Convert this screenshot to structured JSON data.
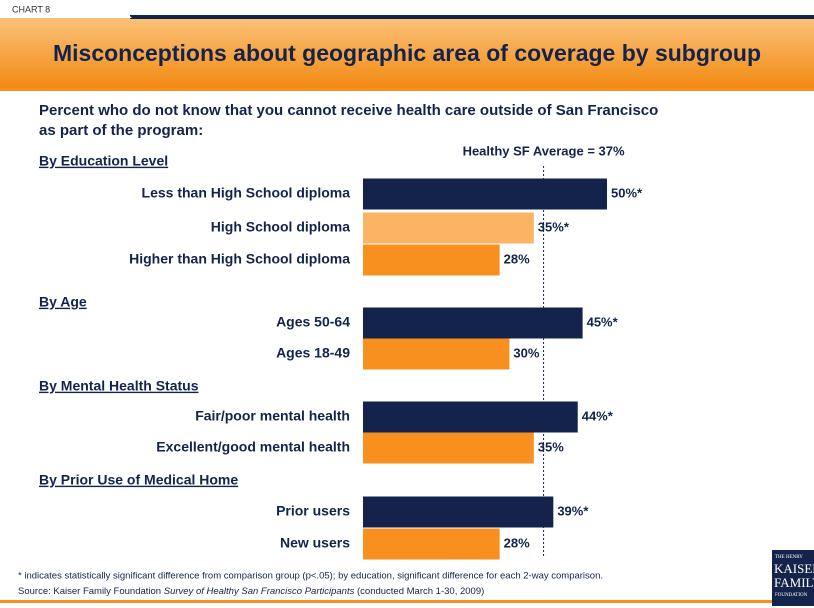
{
  "header": {
    "tag": "CHART 8",
    "title": "Misconceptions about geographic area of coverage by subgroup"
  },
  "chart_data": {
    "type": "bar",
    "subtitle": [
      "Percent who do not know that you cannot receive health care outside of San Francisco",
      "as part of the program:"
    ],
    "reference": {
      "value": 37,
      "label": "Healthy SF Average = 37%"
    },
    "groups": [
      {
        "name": "By Education Level",
        "categories": [
          "Less than High School diploma",
          "High School diploma",
          "Higher than High School diploma"
        ],
        "values": [
          50,
          35,
          28
        ],
        "value_labels": [
          "50%*",
          "35%*",
          "28%"
        ],
        "colors": [
          "#14234b",
          "#fbb463",
          "#f7901e"
        ]
      },
      {
        "name": "By Age",
        "categories": [
          "Ages 50-64",
          "Ages 18-49"
        ],
        "values": [
          45,
          30
        ],
        "value_labels": [
          "45%*",
          "30%"
        ],
        "colors": [
          "#14234b",
          "#f7901e"
        ]
      },
      {
        "name": "By Mental Health Status",
        "categories": [
          "Fair/poor mental health",
          "Excellent/good mental health"
        ],
        "values": [
          44,
          35
        ],
        "value_labels": [
          "44%*",
          "35%"
        ],
        "colors": [
          "#14234b",
          "#f7901e"
        ]
      },
      {
        "name": "By Prior Use of Medical Home",
        "categories": [
          "Prior users",
          "New users"
        ],
        "values": [
          39,
          28
        ],
        "value_labels": [
          "39%*",
          "28%"
        ],
        "colors": [
          "#14234b",
          "#f7901e"
        ]
      }
    ]
  },
  "footer": {
    "note": "* indicates statistically significant difference from comparison group (p<.05); by education, significant difference for each 2-way comparison.",
    "source": [
      "Source: Kaiser Family Foundation ",
      "Survey of Healthy San Francisco Participants",
      " (conducted March 1-30, 2009)"
    ],
    "logo": [
      "THE HENRY",
      "KAISER",
      "FAMILY",
      "FOUNDATION"
    ]
  }
}
